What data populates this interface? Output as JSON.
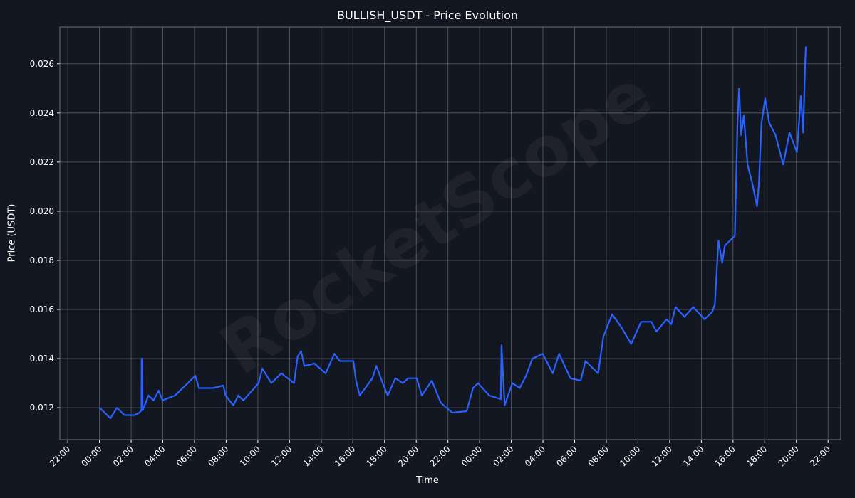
{
  "chart_data": {
    "type": "line",
    "title": "BULLISH_USDT - Price Evolution",
    "xlabel": "Time",
    "ylabel": "Price (USDT)",
    "watermark": "RocketScope",
    "grid": true,
    "line_color": "#2962ff",
    "background": "#131722",
    "xlim": [
      "D0 21:30",
      "D2 22:48"
    ],
    "ylim": [
      0.0107,
      0.0275
    ],
    "yticks": [
      0.012,
      0.014,
      0.016,
      0.018,
      0.02,
      0.022,
      0.024,
      0.026
    ],
    "ytick_labels": [
      "0.012",
      "0.014",
      "0.016",
      "0.018",
      "0.020",
      "0.022",
      "0.024",
      "0.026"
    ],
    "xticks": [
      "D0 22:00",
      "D1 00:00",
      "D1 02:00",
      "D1 04:00",
      "D1 06:00",
      "D1 08:00",
      "D1 10:00",
      "D1 12:00",
      "D1 14:00",
      "D1 16:00",
      "D1 18:00",
      "D1 20:00",
      "D1 22:00",
      "D2 00:00",
      "D2 02:00",
      "D2 04:00",
      "D2 06:00",
      "D2 08:00",
      "D2 10:00",
      "D2 12:00",
      "D2 14:00",
      "D2 16:00",
      "D2 18:00",
      "D2 20:00",
      "D2 22:00"
    ],
    "xtick_labels": [
      "22:00",
      "00:00",
      "02:00",
      "04:00",
      "06:00",
      "08:00",
      "10:00",
      "12:00",
      "14:00",
      "16:00",
      "18:00",
      "20:00",
      "22:00",
      "00:00",
      "02:00",
      "04:00",
      "06:00",
      "08:00",
      "10:00",
      "12:00",
      "14:00",
      "16:00",
      "18:00",
      "20:00",
      "22:00"
    ],
    "series": [
      {
        "points": [
          [
            "D1 00:00",
            0.012
          ],
          [
            "D1 00:42",
            0.01157
          ],
          [
            "D1 01:06",
            0.012
          ],
          [
            "D1 01:35",
            0.0117
          ],
          [
            "D1 02:13",
            0.0117
          ],
          [
            "D1 02:32",
            0.0118
          ],
          [
            "D1 02:39",
            0.0119
          ],
          [
            "D1 02:40",
            0.014
          ],
          [
            "D1 02:44",
            0.0119
          ],
          [
            "D1 03:06",
            0.0125
          ],
          [
            "D1 03:25",
            0.0123
          ],
          [
            "D1 03:44",
            0.0127
          ],
          [
            "D1 03:59",
            0.0123
          ],
          [
            "D1 04:46",
            0.0125
          ],
          [
            "D1 05:25",
            0.0129
          ],
          [
            "D1 06:03",
            0.0133
          ],
          [
            "D1 06:17",
            0.0128
          ],
          [
            "D1 07:10",
            0.0128
          ],
          [
            "D1 07:49",
            0.0129
          ],
          [
            "D1 07:58",
            0.0125
          ],
          [
            "D1 08:27",
            0.0121
          ],
          [
            "D1 08:46",
            0.0125
          ],
          [
            "D1 09:05",
            0.0123
          ],
          [
            "D1 10:03",
            0.013
          ],
          [
            "D1 10:17",
            0.0136
          ],
          [
            "D1 10:51",
            0.013
          ],
          [
            "D1 11:29",
            0.0134
          ],
          [
            "D1 12:17",
            0.013
          ],
          [
            "D1 12:31",
            0.0141
          ],
          [
            "D1 12:44",
            0.0143
          ],
          [
            "D1 12:56",
            0.0137
          ],
          [
            "D1 13:34",
            0.0138
          ],
          [
            "D1 14:17",
            0.0134
          ],
          [
            "D1 14:50",
            0.0142
          ],
          [
            "D1 15:10",
            0.0139
          ],
          [
            "D1 16:02",
            0.0139
          ],
          [
            "D1 16:12",
            0.0131
          ],
          [
            "D1 16:26",
            0.0125
          ],
          [
            "D1 17:14",
            0.0132
          ],
          [
            "D1 17:29",
            0.0137
          ],
          [
            "D1 17:53",
            0.013
          ],
          [
            "D1 18:12",
            0.0125
          ],
          [
            "D1 18:41",
            0.0132
          ],
          [
            "D1 19:09",
            0.013
          ],
          [
            "D1 19:29",
            0.0132
          ],
          [
            "D1 20:02",
            0.0132
          ],
          [
            "D1 20:21",
            0.0125
          ],
          [
            "D1 20:59",
            0.0131
          ],
          [
            "D1 21:33",
            0.0122
          ],
          [
            "D1 22:16",
            0.0118
          ],
          [
            "D1 23:11",
            0.01186
          ],
          [
            "D1 23:35",
            0.0128
          ],
          [
            "D1 23:54",
            0.013
          ],
          [
            "D2 00:37",
            0.0125
          ],
          [
            "D2 01:20",
            0.01235
          ],
          [
            "D2 01:23",
            0.01454
          ],
          [
            "D2 01:35",
            0.0121
          ],
          [
            "D2 02:04",
            0.013
          ],
          [
            "D2 02:32",
            0.0128
          ],
          [
            "D2 02:56",
            0.0133
          ],
          [
            "D2 03:20",
            0.014
          ],
          [
            "D2 03:59",
            0.0142
          ],
          [
            "D2 04:37",
            0.0134
          ],
          [
            "D2 05:01",
            0.0142
          ],
          [
            "D2 05:44",
            0.0132
          ],
          [
            "D2 06:23",
            0.0131
          ],
          [
            "D2 06:41",
            0.0139
          ],
          [
            "D2 07:29",
            0.0134
          ],
          [
            "D2 07:49",
            0.0149
          ],
          [
            "D2 08:22",
            0.0158
          ],
          [
            "D2 08:56",
            0.0153
          ],
          [
            "D2 09:34",
            0.0146
          ],
          [
            "D2 10:12",
            0.0155
          ],
          [
            "D2 10:50",
            0.0155
          ],
          [
            "D2 11:10",
            0.0151
          ],
          [
            "D2 11:48",
            0.0156
          ],
          [
            "D2 12:06",
            0.0154
          ],
          [
            "D2 12:22",
            0.0161
          ],
          [
            "D2 12:56",
            0.0157
          ],
          [
            "D2 13:29",
            0.0161
          ],
          [
            "D2 14:12",
            0.0156
          ],
          [
            "D2 14:41",
            0.0159
          ],
          [
            "D2 14:51",
            0.0162
          ],
          [
            "D2 15:05",
            0.0188
          ],
          [
            "D2 15:19",
            0.0179
          ],
          [
            "D2 15:29",
            0.0186
          ],
          [
            "D2 16:07",
            0.019
          ],
          [
            "D2 16:17",
            0.0236
          ],
          [
            "D2 16:23",
            0.025
          ],
          [
            "D2 16:31",
            0.0231
          ],
          [
            "D2 16:41",
            0.0239
          ],
          [
            "D2 16:55",
            0.0219
          ],
          [
            "D2 17:14",
            0.0211
          ],
          [
            "D2 17:31",
            0.0202
          ],
          [
            "D2 17:38",
            0.0211
          ],
          [
            "D2 17:48",
            0.0236
          ],
          [
            "D2 18:02",
            0.0246
          ],
          [
            "D2 18:17",
            0.0236
          ],
          [
            "D2 18:41",
            0.0231
          ],
          [
            "D2 19:10",
            0.0219
          ],
          [
            "D2 19:34",
            0.0232
          ],
          [
            "D2 20:02",
            0.0224
          ],
          [
            "D2 20:17",
            0.0247
          ],
          [
            "D2 20:26",
            0.0232
          ],
          [
            "D2 20:33",
            0.026
          ],
          [
            "D2 20:36",
            0.0267
          ]
        ]
      }
    ]
  }
}
